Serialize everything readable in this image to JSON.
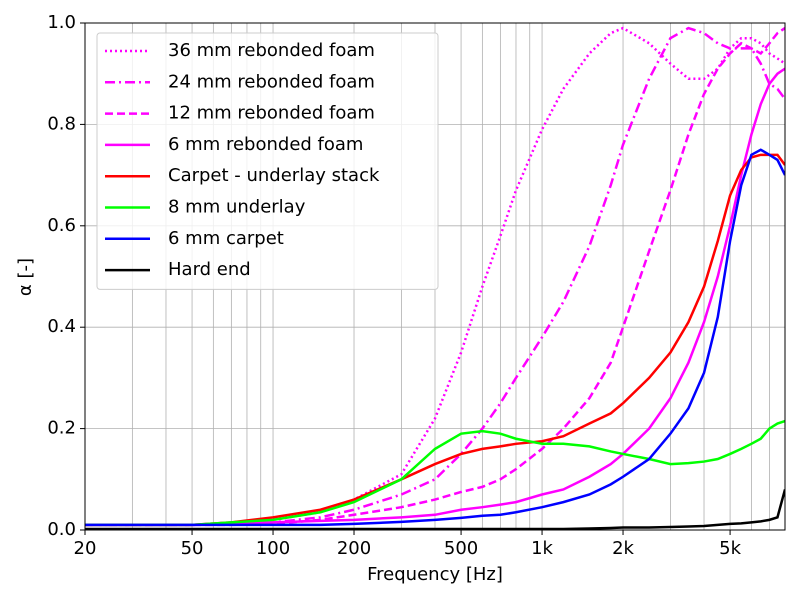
{
  "chart_data": {
    "type": "line",
    "xlabel": "Frequency [Hz]",
    "ylabel": "α [-]",
    "xscale": "log",
    "grid": true,
    "legend": "upper left",
    "xlim": [
      20,
      8000
    ],
    "ylim": [
      0,
      1
    ],
    "xticks": [
      20,
      50,
      100,
      200,
      500,
      {
        "value": 1000,
        "label": "1k"
      },
      {
        "value": 2000,
        "label": "2k"
      },
      {
        "value": 5000,
        "label": "5k"
      }
    ],
    "xminor": [
      30,
      40,
      60,
      70,
      80,
      90,
      300,
      400,
      600,
      700,
      800,
      900,
      3000,
      4000,
      6000,
      7000,
      8000
    ],
    "yticks": [
      {
        "value": 0,
        "label": "0.0"
      },
      {
        "value": 0.2,
        "label": "0.2"
      },
      {
        "value": 0.4,
        "label": "0.4"
      },
      {
        "value": 0.6,
        "label": "0.6"
      },
      {
        "value": 0.8,
        "label": "0.8"
      },
      {
        "value": 1,
        "label": "1.0"
      }
    ],
    "x": [
      20,
      30,
      50,
      70,
      100,
      150,
      200,
      300,
      400,
      500,
      600,
      700,
      800,
      1000,
      1200,
      1500,
      1800,
      2000,
      2500,
      3000,
      3500,
      4000,
      4500,
      5000,
      5500,
      6000,
      6500,
      7000,
      7500,
      8000
    ],
    "series": [
      {
        "name": "36 mm rebonded foam",
        "color": "#ff00ff",
        "linestyle": "dotted",
        "values": [
          0.01,
          0.01,
          0.01,
          0.015,
          0.02,
          0.035,
          0.06,
          0.11,
          0.22,
          0.35,
          0.48,
          0.58,
          0.67,
          0.79,
          0.87,
          0.94,
          0.98,
          0.99,
          0.96,
          0.92,
          0.89,
          0.89,
          0.91,
          0.95,
          0.97,
          0.97,
          0.96,
          0.94,
          0.93,
          0.92
        ]
      },
      {
        "name": "24 mm rebonded foam",
        "color": "#ff00ff",
        "linestyle": "dashdot",
        "values": [
          0.01,
          0.01,
          0.01,
          0.012,
          0.015,
          0.025,
          0.04,
          0.07,
          0.1,
          0.15,
          0.2,
          0.25,
          0.3,
          0.38,
          0.45,
          0.56,
          0.68,
          0.76,
          0.89,
          0.97,
          0.99,
          0.98,
          0.96,
          0.95,
          0.95,
          0.95,
          0.92,
          0.88,
          0.87,
          0.85
        ]
      },
      {
        "name": "12 mm rebonded foam",
        "color": "#ff00ff",
        "linestyle": "dashed",
        "values": [
          0.01,
          0.01,
          0.01,
          0.01,
          0.012,
          0.02,
          0.03,
          0.045,
          0.06,
          0.075,
          0.085,
          0.1,
          0.12,
          0.16,
          0.2,
          0.26,
          0.33,
          0.4,
          0.55,
          0.67,
          0.78,
          0.86,
          0.91,
          0.94,
          0.96,
          0.95,
          0.94,
          0.96,
          0.98,
          0.99
        ]
      },
      {
        "name": "6 mm rebonded foam",
        "color": "#ff00ff",
        "linestyle": "solid",
        "values": [
          0.01,
          0.01,
          0.01,
          0.012,
          0.015,
          0.018,
          0.02,
          0.025,
          0.03,
          0.04,
          0.045,
          0.05,
          0.055,
          0.07,
          0.08,
          0.105,
          0.13,
          0.15,
          0.2,
          0.26,
          0.33,
          0.41,
          0.5,
          0.6,
          0.7,
          0.78,
          0.84,
          0.88,
          0.9,
          0.91
        ]
      },
      {
        "name": "Carpet - underlay stack",
        "color": "#ff0000",
        "linestyle": "solid",
        "values": [
          0.01,
          0.01,
          0.01,
          0.015,
          0.025,
          0.04,
          0.06,
          0.1,
          0.13,
          0.15,
          0.16,
          0.165,
          0.17,
          0.175,
          0.185,
          0.21,
          0.23,
          0.25,
          0.3,
          0.35,
          0.41,
          0.48,
          0.57,
          0.66,
          0.71,
          0.735,
          0.74,
          0.74,
          0.74,
          0.72
        ]
      },
      {
        "name": "8 mm underlay",
        "color": "#00ff00",
        "linestyle": "solid",
        "values": [
          0.01,
          0.01,
          0.01,
          0.015,
          0.02,
          0.035,
          0.055,
          0.1,
          0.16,
          0.19,
          0.195,
          0.19,
          0.18,
          0.17,
          0.17,
          0.165,
          0.155,
          0.15,
          0.14,
          0.13,
          0.132,
          0.135,
          0.14,
          0.15,
          0.16,
          0.17,
          0.18,
          0.2,
          0.21,
          0.215
        ]
      },
      {
        "name": "6 mm carpet",
        "color": "#0000ff",
        "linestyle": "solid",
        "values": [
          0.01,
          0.01,
          0.01,
          0.01,
          0.01,
          0.01,
          0.012,
          0.016,
          0.02,
          0.024,
          0.028,
          0.03,
          0.035,
          0.045,
          0.055,
          0.07,
          0.09,
          0.105,
          0.14,
          0.19,
          0.24,
          0.31,
          0.42,
          0.57,
          0.68,
          0.74,
          0.75,
          0.74,
          0.73,
          0.7
        ]
      },
      {
        "name": "Hard end",
        "color": "#000000",
        "linestyle": "solid",
        "values": [
          0.002,
          0.002,
          0.002,
          0.002,
          0.002,
          0.002,
          0.002,
          0.002,
          0.002,
          0.002,
          0.002,
          0.002,
          0.002,
          0.002,
          0.002,
          0.003,
          0.004,
          0.005,
          0.005,
          0.006,
          0.007,
          0.008,
          0.01,
          0.012,
          0.013,
          0.015,
          0.017,
          0.02,
          0.025,
          0.08
        ]
      }
    ]
  }
}
